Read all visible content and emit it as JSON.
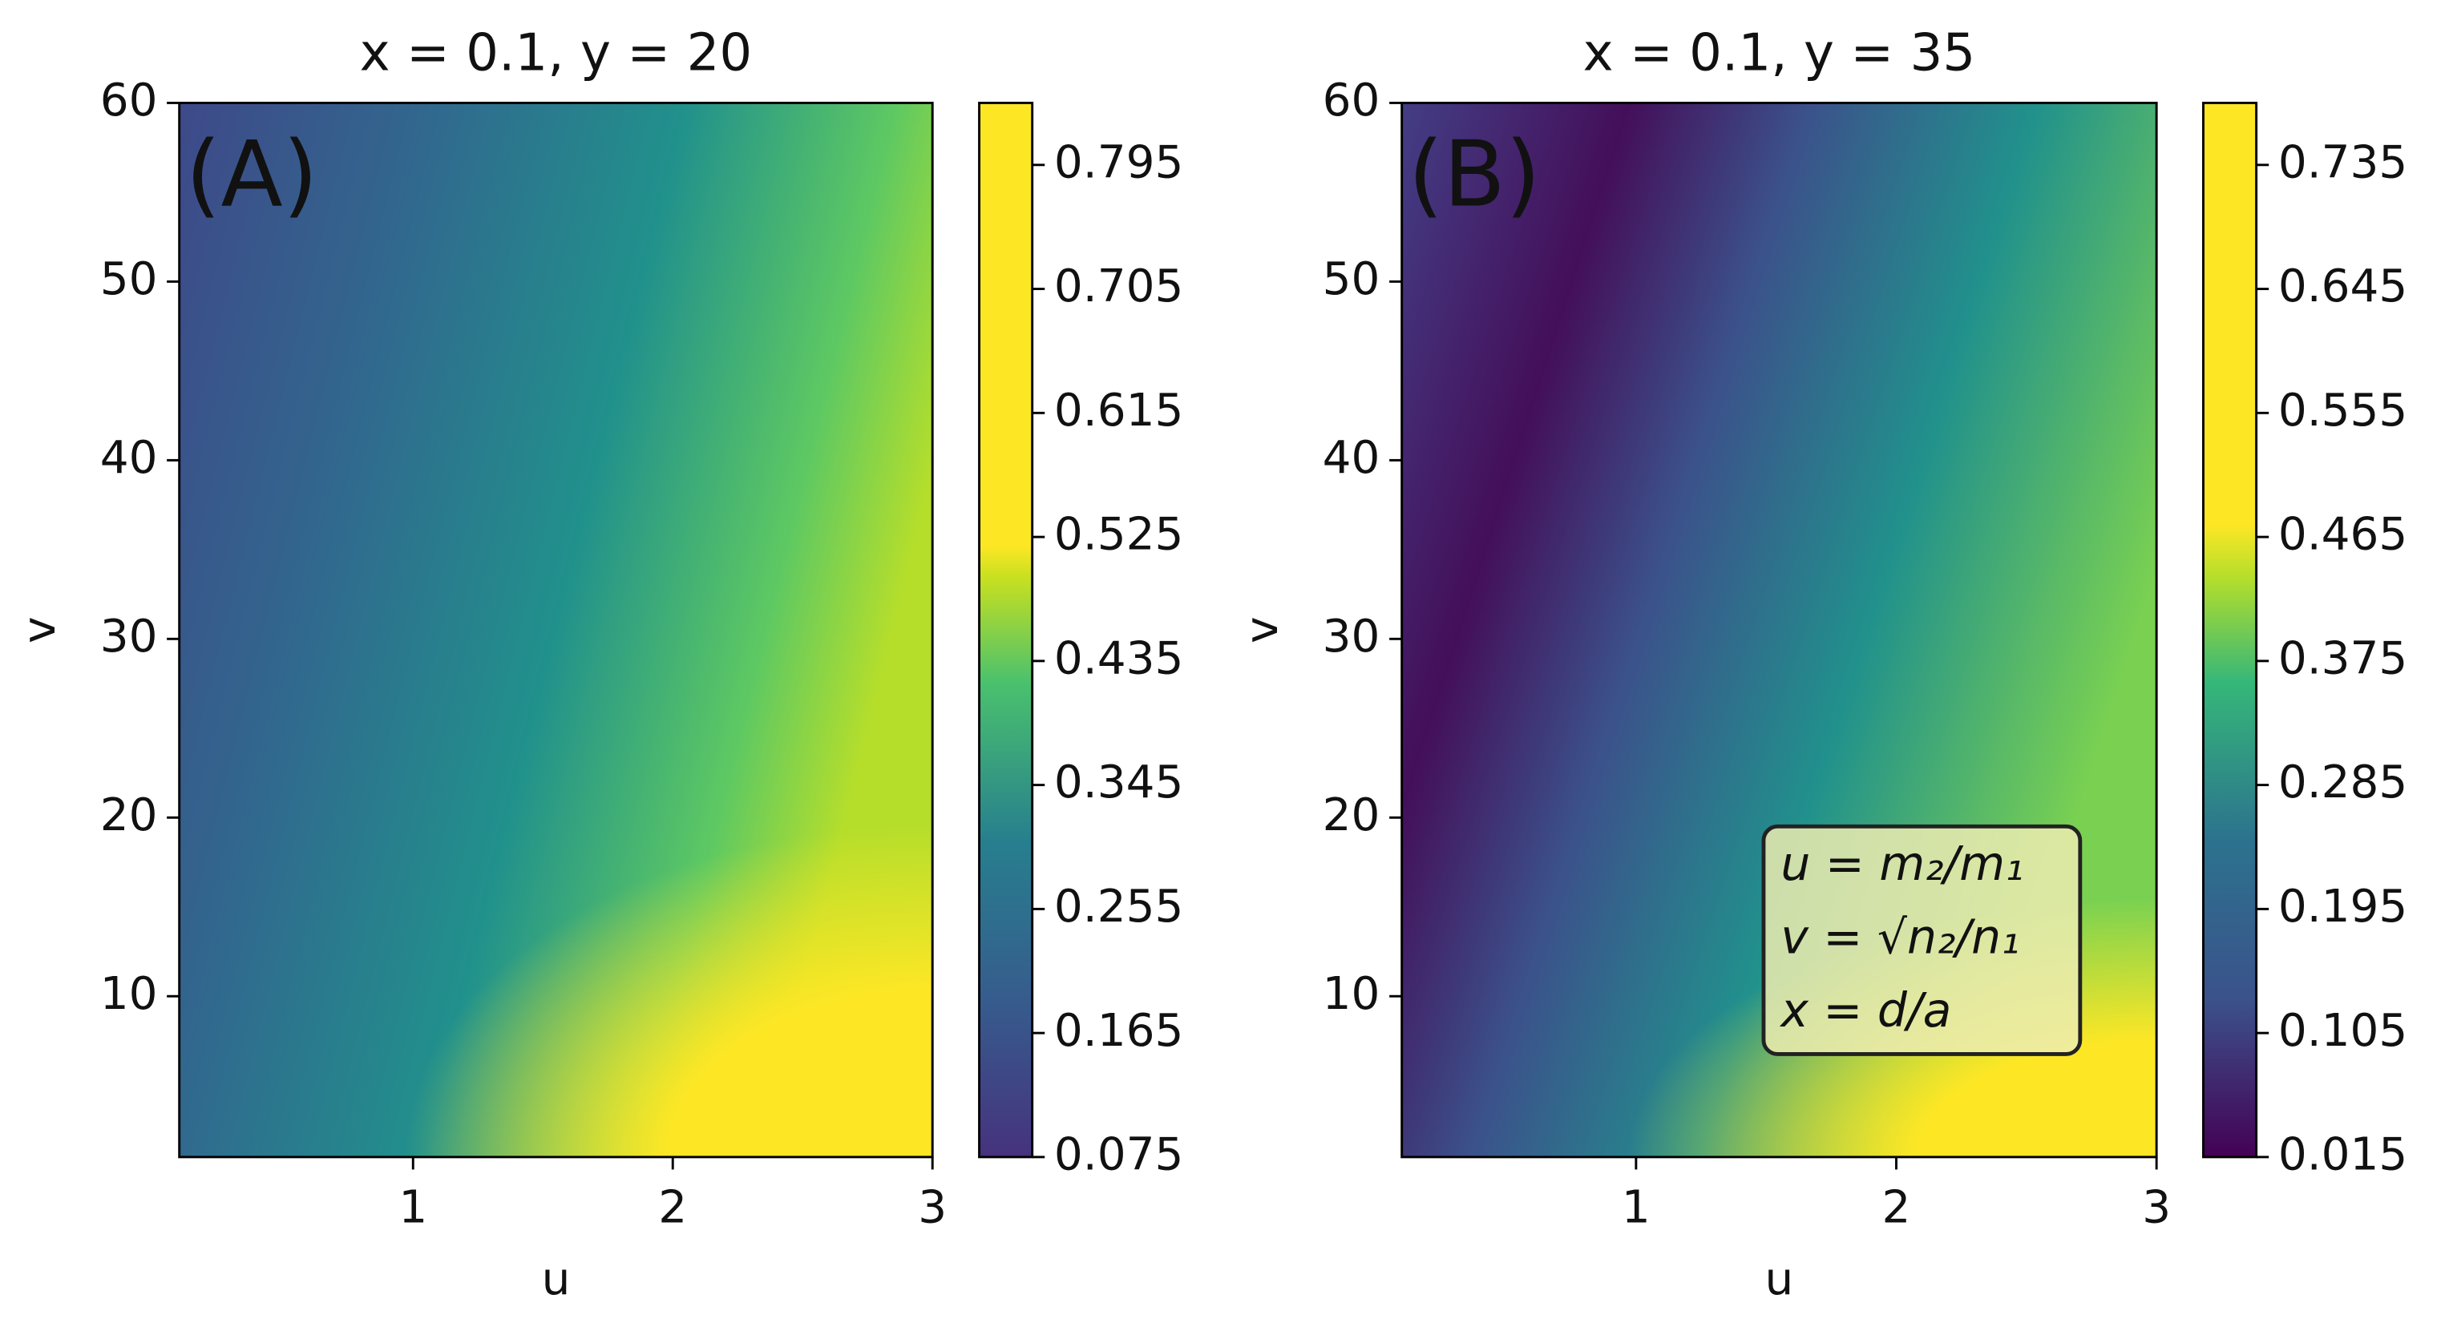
{
  "chart_data": [
    {
      "type": "contour",
      "title": "x = 0.1, y = 20",
      "panel_label": "(A)",
      "x_label": "u",
      "y_label": "v",
      "xlim": [
        0.1,
        3
      ],
      "ylim": [
        1,
        60
      ],
      "xticks": [
        1,
        2,
        3
      ],
      "yticks": [
        10,
        20,
        30,
        40,
        50,
        60
      ],
      "colorbar": {
        "clim": [
          0.075,
          0.84
        ],
        "ticks": [
          0.075,
          0.165,
          0.255,
          0.345,
          0.435,
          0.525,
          0.615,
          0.705,
          0.795
        ]
      }
    },
    {
      "type": "contour",
      "title": "x = 0.1, y = 35",
      "panel_label": "(B)",
      "x_label": "u",
      "y_label": "v",
      "xlim": [
        0.1,
        3
      ],
      "ylim": [
        1,
        60
      ],
      "xticks": [
        1,
        2,
        3
      ],
      "yticks": [
        10,
        20,
        30,
        40,
        50,
        60
      ],
      "colorbar": {
        "clim": [
          0.015,
          0.78
        ],
        "ticks": [
          0.015,
          0.105,
          0.195,
          0.285,
          0.375,
          0.465,
          0.555,
          0.645,
          0.735
        ]
      },
      "annotation": [
        "u = m₂/m₁",
        "v = √n₂/n₁",
        "x = d/a"
      ]
    }
  ]
}
